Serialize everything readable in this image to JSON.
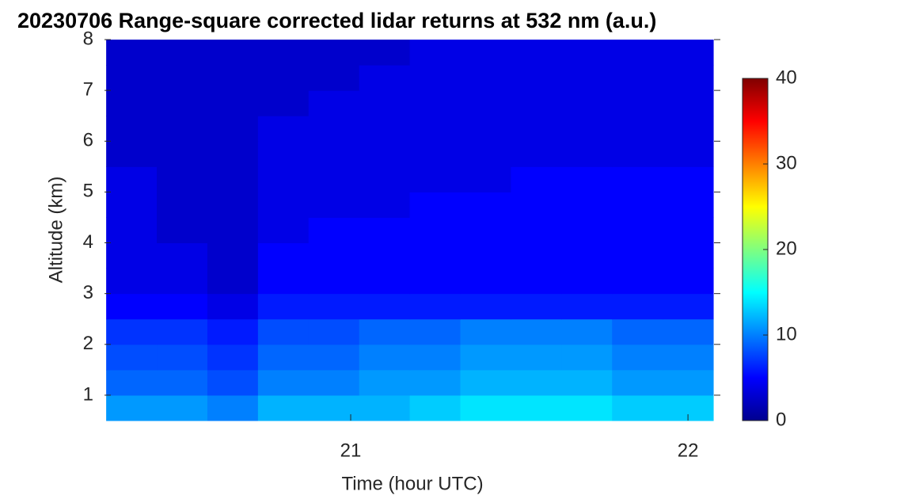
{
  "chart_data": {
    "type": "heatmap",
    "title": "20230706  Range-square corrected lidar returns at 532 nm (a.u.)",
    "x_label": "Time (hour UTC)",
    "y_label": "Altitude (km)",
    "x": [
      20.35,
      20.5,
      20.65,
      20.8,
      20.95,
      21.1,
      21.25,
      21.4,
      21.55,
      21.7,
      21.85,
      22.0
    ],
    "y": [
      0.75,
      1.25,
      1.75,
      2.25,
      2.75,
      3.25,
      3.75,
      4.25,
      4.75,
      5.25,
      5.75,
      6.25,
      6.75,
      7.25,
      7.75
    ],
    "values": [
      [
        11,
        11,
        10,
        12,
        12,
        12,
        13,
        14,
        14,
        14,
        13,
        13
      ],
      [
        9,
        9,
        8,
        10,
        10,
        11,
        11,
        12,
        12,
        12,
        11,
        11
      ],
      [
        8,
        8,
        7,
        9,
        9,
        10,
        10,
        11,
        11,
        11,
        10,
        10
      ],
      [
        7,
        7,
        6,
        8,
        8,
        9,
        9,
        10,
        10,
        10,
        9,
        9
      ],
      [
        5,
        5,
        4,
        6,
        6,
        6,
        6,
        6,
        6,
        6,
        6,
        6
      ],
      [
        4,
        4,
        3,
        5,
        5,
        5,
        5,
        5,
        5,
        5,
        5,
        5
      ],
      [
        4,
        4,
        3,
        5,
        5,
        5,
        5,
        5,
        5,
        5,
        5,
        5
      ],
      [
        4,
        3,
        3,
        4,
        5,
        5,
        5,
        5,
        5,
        5,
        5,
        5
      ],
      [
        4,
        3,
        3,
        4,
        4,
        4,
        5,
        5,
        5,
        5,
        5,
        5
      ],
      [
        4,
        3,
        3,
        4,
        4,
        4,
        4,
        4,
        5,
        5,
        5,
        5
      ],
      [
        3,
        3,
        3,
        4,
        4,
        4,
        4,
        4,
        4,
        4,
        4,
        4
      ],
      [
        3,
        3,
        3,
        4,
        4,
        4,
        4,
        4,
        4,
        4,
        4,
        4
      ],
      [
        3,
        3,
        3,
        3,
        4,
        4,
        4,
        4,
        4,
        4,
        4,
        4
      ],
      [
        3,
        3,
        3,
        3,
        3,
        4,
        4,
        4,
        4,
        4,
        4,
        4
      ],
      [
        3,
        3,
        3,
        3,
        3,
        3,
        4,
        4,
        4,
        4,
        4,
        4
      ]
    ],
    "xlim": [
      20.27,
      22.096
    ],
    "xticks": [
      21,
      22
    ],
    "ylim": [
      0.5,
      8
    ],
    "yticks": [
      1,
      2,
      3,
      4,
      5,
      6,
      7,
      8
    ],
    "clim": [
      0,
      40
    ],
    "cticks": [
      0,
      10,
      20,
      30,
      40
    ],
    "colormap": "jet"
  }
}
